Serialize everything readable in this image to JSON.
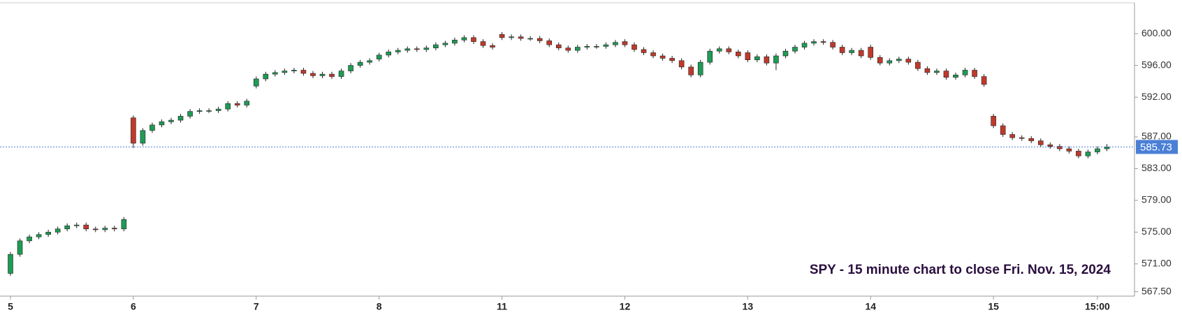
{
  "chart_data": {
    "type": "candlestick",
    "annotation": "SPY - 15 minute chart to close Fri. Nov. 15, 2024",
    "categories": [
      "5",
      null,
      null,
      null,
      null,
      null,
      null,
      null,
      null,
      null,
      null,
      null,
      null,
      "6",
      null,
      null,
      null,
      null,
      null,
      null,
      null,
      null,
      null,
      null,
      null,
      null,
      "7",
      null,
      null,
      null,
      null,
      null,
      null,
      null,
      null,
      null,
      null,
      null,
      null,
      "8",
      null,
      null,
      null,
      null,
      null,
      null,
      null,
      null,
      null,
      null,
      null,
      null,
      "11",
      null,
      null,
      null,
      null,
      null,
      null,
      null,
      null,
      null,
      null,
      null,
      null,
      "12",
      null,
      null,
      null,
      null,
      null,
      null,
      null,
      null,
      null,
      null,
      null,
      null,
      "13",
      null,
      null,
      null,
      null,
      null,
      null,
      null,
      null,
      null,
      null,
      null,
      null,
      "14",
      null,
      null,
      null,
      null,
      null,
      null,
      null,
      null,
      null,
      null,
      null,
      null,
      "15",
      null,
      null,
      null,
      null,
      null,
      null,
      null,
      null,
      null,
      null,
      "15:00",
      null
    ],
    "open": [
      569.8,
      572.2,
      573.9,
      574.4,
      574.7,
      575.0,
      575.4,
      575.8,
      575.9,
      575.4,
      575.3,
      575.5,
      575.4,
      589.4,
      586.2,
      587.8,
      588.5,
      588.9,
      589.1,
      589.6,
      590.2,
      590.3,
      590.3,
      590.5,
      591.2,
      591.0,
      593.4,
      594.3,
      594.9,
      595.1,
      595.3,
      595.4,
      595.0,
      594.7,
      594.9,
      594.6,
      595.3,
      596.0,
      596.4,
      596.8,
      597.3,
      597.7,
      597.9,
      598.1,
      598.0,
      598.2,
      598.6,
      598.8,
      599.2,
      599.5,
      599.0,
      598.5,
      599.9,
      599.5,
      599.6,
      599.4,
      599.4,
      599.1,
      598.6,
      598.2,
      597.9,
      598.3,
      598.4,
      598.4,
      598.6,
      599.0,
      598.6,
      598.0,
      597.6,
      597.2,
      596.9,
      596.6,
      595.8,
      594.8,
      596.4,
      597.8,
      598.1,
      597.7,
      597.6,
      596.7,
      597.1,
      596.3,
      597.2,
      597.8,
      598.3,
      598.8,
      599.0,
      598.9,
      598.3,
      597.6,
      597.9,
      598.3,
      597.0,
      596.3,
      596.6,
      596.8,
      596.4,
      595.6,
      595.1,
      595.3,
      594.5,
      594.8,
      595.4,
      594.6,
      589.6,
      588.4,
      587.3,
      586.9,
      586.8,
      586.5,
      586.0,
      585.8,
      585.5,
      585.2,
      584.6,
      585.1,
      585.5
    ],
    "high": [
      572.5,
      574.2,
      574.7,
      575.0,
      575.3,
      575.7,
      576.1,
      576.2,
      576.2,
      575.7,
      575.8,
      575.8,
      576.9,
      589.7,
      588.1,
      588.8,
      589.2,
      589.4,
      589.9,
      590.5,
      590.6,
      590.6,
      590.8,
      591.5,
      591.5,
      591.8,
      594.6,
      595.2,
      595.4,
      595.6,
      595.7,
      595.7,
      595.3,
      595.2,
      595.2,
      595.6,
      596.3,
      596.7,
      596.9,
      597.6,
      598.0,
      598.2,
      598.4,
      598.4,
      598.5,
      598.9,
      599.1,
      599.5,
      599.8,
      599.8,
      599.3,
      598.8,
      600.2,
      599.9,
      599.9,
      599.7,
      599.7,
      599.4,
      598.9,
      598.5,
      598.6,
      598.7,
      598.7,
      598.9,
      599.2,
      599.3,
      598.9,
      598.3,
      597.9,
      597.5,
      597.2,
      596.9,
      596.1,
      596.7,
      598.1,
      598.4,
      598.4,
      598.0,
      597.9,
      597.4,
      597.4,
      597.5,
      598.1,
      598.6,
      599.1,
      599.3,
      599.3,
      599.2,
      598.6,
      598.2,
      598.2,
      598.6,
      597.3,
      596.9,
      597.1,
      597.1,
      596.7,
      595.9,
      595.6,
      595.6,
      595.1,
      595.7,
      595.7,
      594.9,
      589.9,
      588.7,
      587.6,
      587.2,
      587.1,
      586.8,
      586.3,
      586.1,
      585.8,
      585.5,
      585.4,
      585.8,
      586.1
    ],
    "low": [
      569.5,
      571.9,
      573.6,
      574.1,
      574.4,
      574.7,
      575.1,
      575.5,
      575.1,
      575.0,
      575.0,
      575.1,
      575.1,
      585.6,
      585.9,
      587.5,
      588.2,
      588.6,
      588.8,
      589.3,
      589.9,
      590.0,
      590.0,
      590.2,
      590.7,
      590.7,
      593.1,
      594.0,
      594.6,
      594.8,
      595.0,
      594.7,
      594.4,
      594.4,
      594.3,
      594.3,
      595.0,
      595.7,
      596.1,
      596.5,
      597.0,
      597.4,
      597.6,
      597.7,
      597.7,
      597.9,
      598.3,
      598.5,
      598.9,
      598.7,
      598.2,
      598.0,
      599.2,
      599.2,
      599.1,
      599.1,
      598.8,
      598.3,
      597.9,
      597.6,
      597.6,
      598.0,
      598.1,
      598.1,
      598.3,
      598.3,
      597.7,
      597.3,
      596.9,
      596.6,
      596.3,
      595.5,
      594.5,
      594.5,
      596.1,
      597.5,
      597.4,
      596.9,
      596.4,
      596.4,
      596.0,
      595.4,
      596.9,
      597.5,
      598.0,
      598.5,
      598.6,
      598.0,
      597.3,
      597.3,
      596.9,
      596.7,
      596.0,
      596.0,
      596.3,
      596.1,
      595.3,
      594.8,
      594.8,
      594.2,
      594.2,
      594.5,
      594.3,
      593.3,
      588.1,
      587.0,
      586.6,
      586.5,
      586.2,
      585.7,
      585.5,
      585.2,
      584.9,
      584.3,
      584.3,
      584.8,
      585.2
    ],
    "close": [
      572.2,
      573.9,
      574.4,
      574.7,
      575.0,
      575.4,
      575.8,
      575.9,
      575.4,
      575.3,
      575.5,
      575.4,
      576.6,
      586.2,
      587.8,
      588.5,
      588.9,
      589.1,
      589.6,
      590.2,
      590.3,
      590.3,
      590.5,
      591.2,
      591.0,
      591.5,
      594.3,
      594.9,
      595.1,
      595.3,
      595.4,
      595.0,
      594.7,
      594.9,
      594.6,
      595.3,
      596.0,
      596.4,
      596.6,
      597.3,
      597.7,
      597.9,
      598.1,
      598.0,
      598.2,
      598.6,
      598.8,
      599.2,
      599.5,
      599.0,
      598.5,
      598.3,
      599.5,
      599.6,
      599.4,
      599.4,
      599.1,
      598.6,
      598.2,
      597.9,
      598.3,
      598.4,
      598.4,
      598.6,
      598.9,
      598.6,
      598.0,
      597.6,
      597.2,
      596.9,
      596.6,
      595.8,
      594.8,
      596.4,
      597.8,
      598.1,
      597.7,
      597.2,
      596.7,
      597.1,
      596.3,
      597.2,
      597.8,
      598.3,
      598.8,
      599.0,
      598.9,
      598.3,
      597.6,
      597.9,
      597.2,
      597.0,
      596.3,
      596.6,
      596.8,
      596.4,
      595.6,
      595.1,
      595.3,
      594.5,
      594.8,
      595.4,
      594.6,
      593.6,
      588.4,
      587.3,
      586.9,
      586.8,
      586.5,
      586.0,
      585.8,
      585.5,
      585.2,
      584.6,
      585.1,
      585.5,
      585.73
    ],
    "up_color": "#1e9b55",
    "down_color": "#c0392b",
    "last_price": 585.73,
    "last_price_color": "#4a7fd6",
    "ylim": [
      567.2,
      603.8
    ],
    "yticks": [
      {
        "value": 567.5,
        "label": "567.50"
      },
      {
        "value": 571,
        "label": "571.00"
      },
      {
        "value": 575,
        "label": "575.00"
      },
      {
        "value": 579,
        "label": "579.00"
      },
      {
        "value": 583,
        "label": "583.00"
      },
      {
        "value": 587,
        "label": "587.00"
      },
      {
        "value": 592,
        "label": "592.00"
      },
      {
        "value": 596,
        "label": "596.00"
      },
      {
        "value": 600,
        "label": "600.00"
      }
    ]
  }
}
